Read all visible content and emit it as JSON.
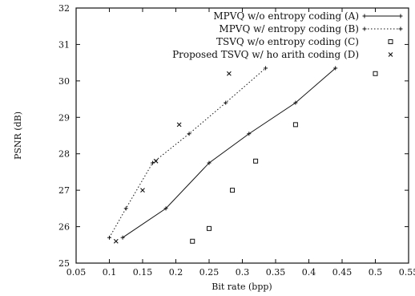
{
  "chart_data": {
    "type": "line",
    "xlabel": "Bit rate (bpp)",
    "ylabel": "PSNR (dB)",
    "xlim": [
      0.05,
      0.55
    ],
    "ylim": [
      25,
      32
    ],
    "xticks": [
      "0.05",
      "0.1",
      "0.15",
      "0.2",
      "0.25",
      "0.3",
      "0.35",
      "0.4",
      "0.45",
      "0.5",
      "0.55"
    ],
    "yticks": [
      "25",
      "26",
      "27",
      "28",
      "29",
      "30",
      "31",
      "32"
    ],
    "grid": false,
    "legend_position": "top-right",
    "series": [
      {
        "name": "MPVQ w/o entropy coding (A)",
        "line": "solid",
        "marker": "plus",
        "x": [
          0.12,
          0.185,
          0.25,
          0.31,
          0.38,
          0.44
        ],
        "y": [
          25.7,
          26.5,
          27.75,
          28.55,
          29.4,
          30.35
        ]
      },
      {
        "name": "MPVQ w/ entropy coding (B)",
        "line": "dotted",
        "marker": "plus",
        "x": [
          0.1,
          0.125,
          0.165,
          0.22,
          0.275,
          0.335
        ],
        "y": [
          25.7,
          26.5,
          27.75,
          28.55,
          29.4,
          30.35
        ]
      },
      {
        "name": "TSVQ w/o entropy coding (C)",
        "line": "none",
        "marker": "square",
        "x": [
          0.225,
          0.25,
          0.285,
          0.32,
          0.38,
          0.5
        ],
        "y": [
          25.6,
          25.95,
          27.0,
          27.8,
          28.8,
          30.2
        ]
      },
      {
        "name": "Proposed TSVQ w/ ho arith coding (D)",
        "line": "none",
        "marker": "cross",
        "x": [
          0.11,
          0.15,
          0.17,
          0.205,
          0.28
        ],
        "y": [
          25.6,
          27.0,
          27.8,
          28.8,
          30.2
        ]
      }
    ]
  }
}
